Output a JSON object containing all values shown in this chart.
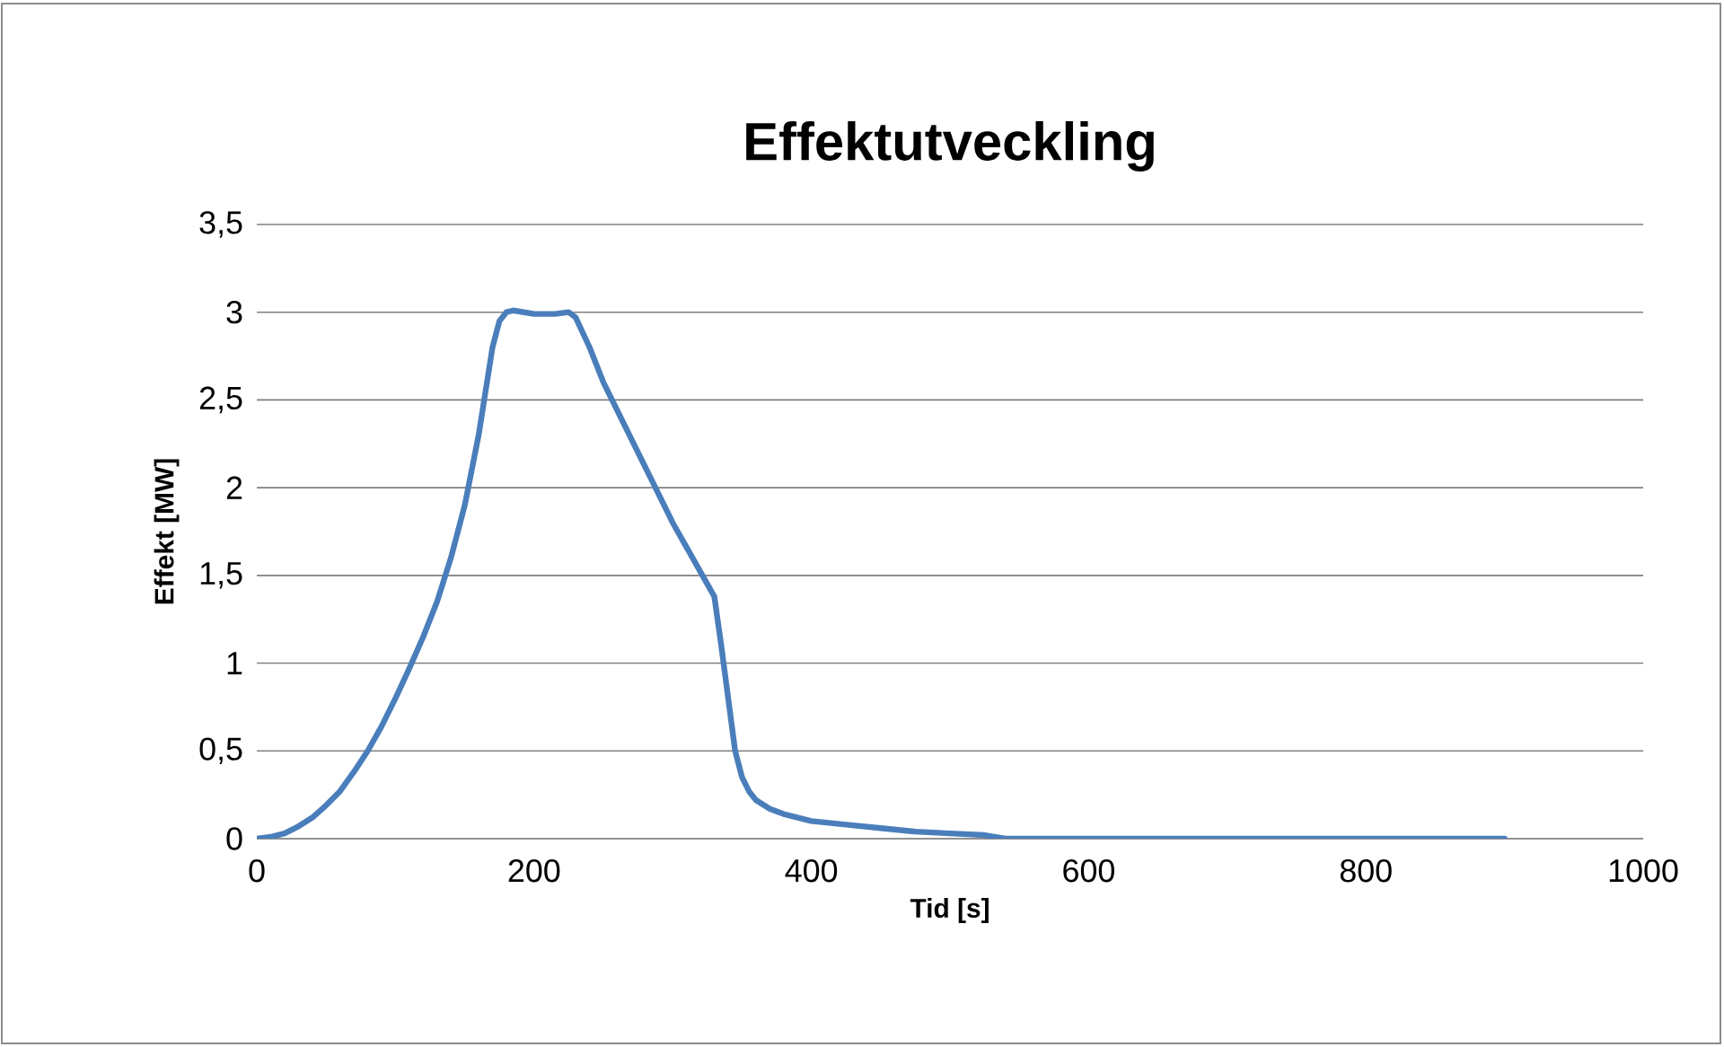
{
  "chart_data": {
    "type": "line",
    "title": "Effektutveckling",
    "xlabel": "Tid [s]",
    "ylabel": "Effekt [MW]",
    "x": [
      0,
      10,
      20,
      30,
      40,
      50,
      60,
      70,
      80,
      90,
      100,
      110,
      120,
      130,
      140,
      150,
      160,
      170,
      175,
      180,
      185,
      200,
      215,
      225,
      230,
      240,
      250,
      275,
      300,
      325,
      330,
      335,
      340,
      345,
      350,
      355,
      360,
      370,
      380,
      400,
      425,
      450,
      475,
      500,
      525,
      540,
      600,
      700,
      800,
      900
    ],
    "series": [
      {
        "color": "#4a7ebb",
        "values": [
          0,
          0.01,
          0.03,
          0.07,
          0.12,
          0.19,
          0.27,
          0.38,
          0.5,
          0.64,
          0.8,
          0.97,
          1.15,
          1.35,
          1.6,
          1.9,
          2.3,
          2.8,
          2.95,
          3.0,
          3.01,
          2.99,
          2.99,
          3.0,
          2.97,
          2.8,
          2.6,
          2.2,
          1.8,
          1.45,
          1.38,
          1.1,
          0.8,
          0.5,
          0.35,
          0.27,
          0.22,
          0.17,
          0.14,
          0.1,
          0.08,
          0.06,
          0.04,
          0.03,
          0.02,
          0.0,
          0.0,
          0.0,
          0.0,
          0.0
        ]
      }
    ],
    "xlim": [
      0,
      1000
    ],
    "ylim": [
      0,
      3.5
    ],
    "xticks": [
      0,
      200,
      400,
      600,
      800,
      1000
    ],
    "yticks": [
      0,
      {
        "value": 0.5,
        "label": "0,5"
      },
      1,
      {
        "value": 1.5,
        "label": "1,5"
      },
      2,
      {
        "value": 2.5,
        "label": "2,5"
      },
      3,
      {
        "value": 3.5,
        "label": "3,5"
      }
    ],
    "grid": "y",
    "legend": false,
    "marker": "none",
    "line_style": "solid"
  }
}
